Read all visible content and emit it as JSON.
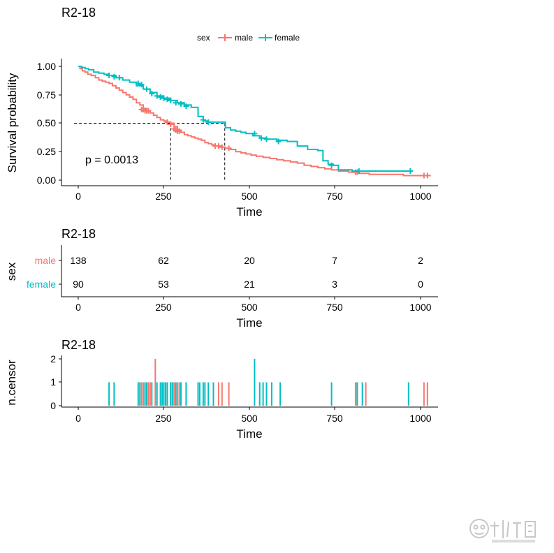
{
  "colors": {
    "male": "#F8766D",
    "female": "#00BFC4",
    "axis": "#000000"
  },
  "main": {
    "title": "R2-18",
    "legend": {
      "title": "sex",
      "entries": [
        "male",
        "female"
      ]
    },
    "ylabel": "Survival probability",
    "xlabel": "Time",
    "pvalue": "p = 0.0013",
    "x_ticks": [
      "0",
      "250",
      "500",
      "750",
      "1000"
    ],
    "y_ticks": [
      "0.00",
      "0.25",
      "0.50",
      "0.75",
      "1.00"
    ]
  },
  "risk_table": {
    "title": "R2-18",
    "ylabel": "sex",
    "xlabel": "Time",
    "x_ticks": [
      "0",
      "250",
      "500",
      "750",
      "1000"
    ],
    "rows": [
      {
        "label": "male",
        "counts": [
          "138",
          "62",
          "20",
          "7",
          "2"
        ]
      },
      {
        "label": "female",
        "counts": [
          "90",
          "53",
          "21",
          "3",
          "0"
        ]
      }
    ]
  },
  "censor_plot": {
    "title": "R2-18",
    "ylabel": "n.censor",
    "xlabel": "Time",
    "x_ticks": [
      "0",
      "250",
      "500",
      "750",
      "1000"
    ],
    "y_ticks": [
      "0",
      "1",
      "2"
    ]
  },
  "chart_data": [
    {
      "type": "line",
      "step": true,
      "title": "R2-18",
      "xlabel": "Time",
      "ylabel": "Survival probability",
      "xlim": [
        -12,
        1030
      ],
      "ylim": [
        0,
        1
      ],
      "legend_position": "top",
      "annotation": "p = 0.0013",
      "median_survival": {
        "male": 270,
        "female": 428
      },
      "series": [
        {
          "name": "male",
          "x": [
            0,
            5,
            12,
            20,
            28,
            38,
            50,
            60,
            70,
            80,
            90,
            100,
            110,
            120,
            130,
            140,
            150,
            160,
            170,
            180,
            190,
            200,
            210,
            220,
            230,
            240,
            250,
            260,
            270,
            280,
            290,
            300,
            310,
            320,
            330,
            340,
            350,
            360,
            370,
            380,
            390,
            400,
            410,
            420,
            430,
            445,
            460,
            475,
            490,
            505,
            520,
            540,
            560,
            580,
            600,
            620,
            640,
            660,
            680,
            700,
            720,
            740,
            760,
            790,
            820,
            850,
            900,
            950,
            1000,
            1030
          ],
          "y": [
            1.0,
            0.98,
            0.96,
            0.95,
            0.93,
            0.92,
            0.9,
            0.88,
            0.87,
            0.86,
            0.85,
            0.83,
            0.81,
            0.79,
            0.77,
            0.75,
            0.73,
            0.71,
            0.68,
            0.66,
            0.63,
            0.61,
            0.59,
            0.57,
            0.55,
            0.53,
            0.52,
            0.51,
            0.5,
            0.47,
            0.44,
            0.42,
            0.4,
            0.39,
            0.38,
            0.37,
            0.36,
            0.35,
            0.33,
            0.32,
            0.31,
            0.3,
            0.3,
            0.29,
            0.28,
            0.27,
            0.25,
            0.24,
            0.23,
            0.22,
            0.21,
            0.2,
            0.19,
            0.18,
            0.17,
            0.16,
            0.15,
            0.13,
            0.12,
            0.11,
            0.1,
            0.09,
            0.08,
            0.07,
            0.06,
            0.05,
            0.05,
            0.04,
            0.04,
            0.04
          ],
          "censor_x": [
            185,
            190,
            195,
            200,
            205,
            260,
            270,
            280,
            285,
            290,
            295,
            400,
            410,
            420,
            440,
            810,
            815,
            1010,
            1020
          ],
          "censor_y": [
            0.62,
            0.62,
            0.61,
            0.61,
            0.61,
            0.51,
            0.49,
            0.45,
            0.44,
            0.43,
            0.43,
            0.3,
            0.3,
            0.29,
            0.28,
            0.07,
            0.07,
            0.04,
            0.04
          ]
        },
        {
          "name": "female",
          "x": [
            0,
            10,
            20,
            30,
            45,
            60,
            75,
            90,
            110,
            130,
            150,
            170,
            190,
            210,
            230,
            250,
            270,
            290,
            310,
            330,
            350,
            365,
            380,
            400,
            430,
            445,
            460,
            475,
            490,
            510,
            530,
            550,
            580,
            610,
            640,
            670,
            700,
            715,
            730,
            745,
            760,
            800,
            850,
            900,
            960,
            970
          ],
          "y": [
            1.0,
            0.99,
            0.98,
            0.97,
            0.95,
            0.94,
            0.93,
            0.92,
            0.9,
            0.88,
            0.86,
            0.83,
            0.8,
            0.77,
            0.74,
            0.72,
            0.7,
            0.68,
            0.66,
            0.64,
            0.56,
            0.52,
            0.51,
            0.51,
            0.46,
            0.44,
            0.43,
            0.42,
            0.41,
            0.39,
            0.37,
            0.36,
            0.35,
            0.34,
            0.3,
            0.27,
            0.26,
            0.17,
            0.14,
            0.13,
            0.09,
            0.08,
            0.08,
            0.08,
            0.08,
            0.08
          ],
          "censor_x": [
            90,
            105,
            120,
            175,
            185,
            200,
            215,
            230,
            240,
            250,
            260,
            270,
            285,
            300,
            315,
            365,
            380,
            515,
            535,
            550,
            585,
            740,
            820,
            970
          ],
          "censor_y": [
            0.92,
            0.91,
            0.9,
            0.85,
            0.84,
            0.8,
            0.76,
            0.74,
            0.73,
            0.72,
            0.71,
            0.7,
            0.68,
            0.67,
            0.65,
            0.53,
            0.51,
            0.41,
            0.37,
            0.36,
            0.34,
            0.13,
            0.08,
            0.08
          ]
        }
      ]
    },
    {
      "type": "table",
      "title": "R2-18",
      "xlabel": "Time",
      "ylabel": "sex",
      "x": [
        0,
        250,
        500,
        750,
        1000
      ],
      "series": [
        {
          "name": "male",
          "values": [
            138,
            62,
            20,
            7,
            2
          ]
        },
        {
          "name": "female",
          "values": [
            90,
            53,
            21,
            3,
            0
          ]
        }
      ]
    },
    {
      "type": "bar",
      "title": "R2-18",
      "xlabel": "Time",
      "ylabel": "n.censor",
      "ylim": [
        0,
        2
      ],
      "series": [
        {
          "name": "male",
          "x": [
            185,
            190,
            195,
            200,
            205,
            210,
            225,
            260,
            270,
            280,
            285,
            290,
            295,
            410,
            420,
            440,
            810,
            815,
            840,
            1010,
            1020
          ],
          "values": [
            1,
            1,
            1,
            1,
            1,
            1,
            2,
            1,
            1,
            1,
            1,
            1,
            1,
            1,
            1,
            1,
            1,
            1,
            1,
            1,
            1
          ]
        },
        {
          "name": "female",
          "x": [
            90,
            105,
            175,
            180,
            195,
            200,
            215,
            230,
            240,
            245,
            250,
            255,
            260,
            270,
            275,
            285,
            300,
            315,
            350,
            355,
            365,
            370,
            380,
            395,
            515,
            530,
            540,
            550,
            565,
            590,
            740,
            815,
            830,
            965
          ],
          "values": [
            1,
            1,
            1,
            1,
            1,
            1,
            1,
            1,
            1,
            1,
            1,
            1,
            1,
            1,
            1,
            1,
            1,
            1,
            1,
            1,
            1,
            1,
            1,
            1,
            2,
            1,
            1,
            1,
            1,
            1,
            1,
            1,
            1,
            1
          ]
        }
      ]
    }
  ]
}
